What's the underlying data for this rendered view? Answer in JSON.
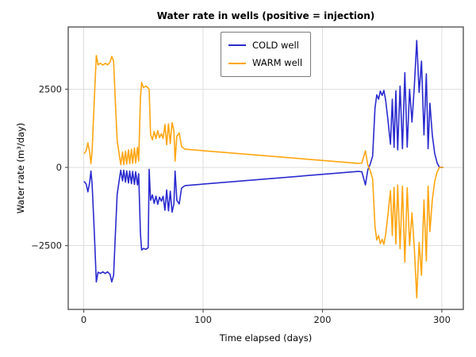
{
  "figure": {
    "title": "Water rate in wells (positive = injection)",
    "xlabel": "Time elapsed (days)",
    "ylabel": "Water rate (m³/day)"
  },
  "legend": {
    "entries": [
      {
        "label": "COLD well",
        "color": "#2a2ad0"
      },
      {
        "label": "WARM well",
        "color": "#ffa510"
      }
    ]
  },
  "colors": {
    "grid": "#d9d9d9",
    "spine": "#565656",
    "tick_label": "#1a1a1a",
    "background": "#ffffff",
    "cold": "#2a2ad0",
    "warm": "#ffa510"
  },
  "chart_data": {
    "type": "line",
    "title": "Water rate in wells (positive = injection)",
    "xlabel": "Time elapsed (days)",
    "ylabel": "Water rate (m³/day)",
    "grid": true,
    "legend_position": "upper center",
    "xlim": [
      -13,
      318
    ],
    "ylim": [
      -4540,
      4490
    ],
    "xticks": {
      "values": [
        0,
        100,
        200,
        300
      ],
      "labels": [
        "0",
        "100",
        "200",
        "300"
      ]
    },
    "yticks": {
      "values": [
        -2500,
        0,
        2500
      ],
      "labels": [
        "−2500",
        "0",
        "2500"
      ]
    },
    "x": [
      0.5,
      2,
      3.5,
      5,
      6,
      7,
      9,
      10.5,
      12,
      14,
      16,
      18,
      20,
      22,
      23.5,
      25,
      26.5,
      28,
      30,
      31,
      32.5,
      33.5,
      35,
      36,
      37.5,
      38.5,
      40,
      41,
      42.5,
      43.5,
      45,
      46,
      47.5,
      48.5,
      50,
      52,
      54,
      54.8,
      56,
      57.5,
      59,
      60.5,
      62,
      63.5,
      65,
      66.5,
      68,
      69.5,
      71,
      72.5,
      74,
      75.5,
      76.5,
      78,
      80,
      82,
      85,
      230,
      233,
      236,
      238,
      240,
      242,
      244,
      245.5,
      247,
      248.5,
      250,
      251.5,
      253,
      255,
      257,
      258.5,
      260,
      261.5,
      263,
      265,
      267,
      269,
      271,
      273,
      275,
      277,
      279,
      281,
      283,
      285,
      287,
      288.5,
      290,
      292,
      294,
      296,
      298,
      301
    ],
    "series": [
      {
        "name": "COLD well",
        "color": "#2a2ad0",
        "values": [
          -460,
          -530,
          -780,
          -470,
          -120,
          -530,
          -2200,
          -3660,
          -3350,
          -3390,
          -3340,
          -3390,
          -3340,
          -3420,
          -3660,
          -3450,
          -2150,
          -860,
          -340,
          -90,
          -430,
          -90,
          -470,
          -110,
          -500,
          -120,
          -520,
          -130,
          -540,
          -140,
          -560,
          -200,
          -2100,
          -2640,
          -2590,
          -2620,
          -2570,
          -60,
          -1050,
          -880,
          -1150,
          -920,
          -1180,
          -950,
          -1080,
          -920,
          -1370,
          -720,
          -1390,
          -760,
          -1430,
          -1170,
          -120,
          -1050,
          -1170,
          -660,
          -580,
          -130,
          -140,
          -560,
          -80,
          100,
          360,
          1900,
          2320,
          2180,
          2440,
          2300,
          2460,
          2130,
          1470,
          740,
          2180,
          640,
          2450,
          560,
          2600,
          600,
          3030,
          650,
          2500,
          1450,
          2600,
          4060,
          2400,
          3400,
          1040,
          2990,
          600,
          2050,
          1040,
          450,
          150,
          0,
          0
        ]
      },
      {
        "name": "WARM well",
        "color": "#ffa510",
        "values": [
          450,
          530,
          790,
          470,
          120,
          530,
          2300,
          3580,
          3280,
          3330,
          3270,
          3330,
          3280,
          3360,
          3550,
          3400,
          2100,
          860,
          340,
          90,
          490,
          90,
          520,
          110,
          560,
          120,
          580,
          130,
          620,
          140,
          640,
          200,
          2200,
          2720,
          2550,
          2600,
          2540,
          2500,
          1050,
          880,
          1150,
          920,
          1180,
          950,
          1080,
          920,
          1370,
          720,
          1390,
          760,
          1430,
          1170,
          200,
          1000,
          1100,
          660,
          580,
          130,
          140,
          530,
          80,
          -100,
          -360,
          -1900,
          -2320,
          -2180,
          -2440,
          -2300,
          -2460,
          -2130,
          -1470,
          -740,
          -2180,
          -640,
          -2450,
          -560,
          -2600,
          -600,
          -3030,
          -650,
          -2500,
          -1450,
          -2600,
          -4170,
          -2400,
          -3450,
          -1040,
          -2990,
          -600,
          -2050,
          -1040,
          -450,
          -150,
          0,
          0
        ]
      }
    ]
  }
}
